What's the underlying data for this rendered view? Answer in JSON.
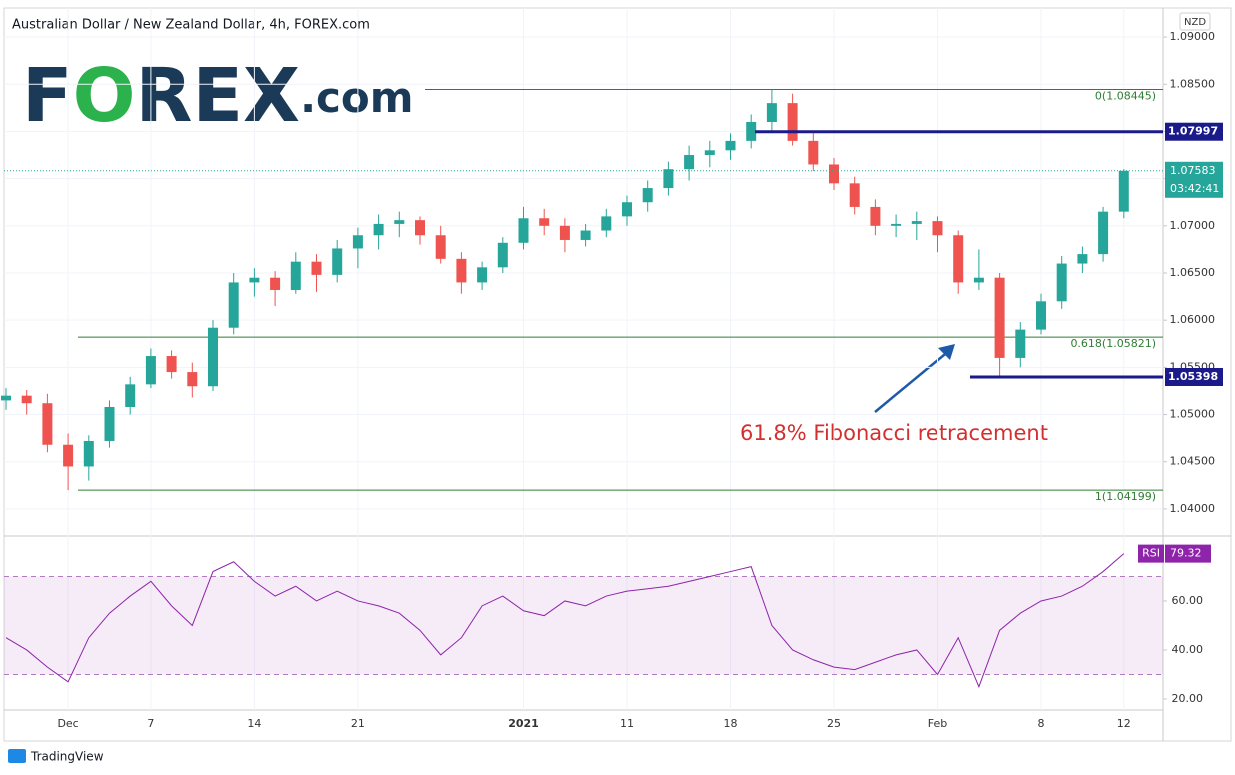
{
  "header": {
    "title": "Australian Dollar / New Zealand Dollar, 4h, FOREX.com",
    "logo": [
      "F",
      "O",
      "REX",
      ".com"
    ]
  },
  "chart_data": [
    {
      "type": "candlestick",
      "categories": [
        null,
        null,
        null,
        "Dec",
        null,
        null,
        null,
        "7",
        null,
        null,
        null,
        null,
        "14",
        null,
        null,
        null,
        null,
        "21",
        null,
        null,
        null,
        null,
        null,
        null,
        null,
        "2021",
        null,
        null,
        null,
        null,
        "11",
        null,
        null,
        null,
        null,
        "18",
        null,
        null,
        null,
        null,
        "25",
        null,
        null,
        null,
        null,
        "Feb",
        null,
        null,
        null,
        null,
        "8",
        null,
        null,
        null,
        "12"
      ],
      "open": [
        1.0515,
        1.052,
        1.0512,
        1.0468,
        1.0445,
        1.0472,
        1.0508,
        1.0532,
        1.0562,
        1.0545,
        1.053,
        1.0592,
        1.064,
        1.0645,
        1.0632,
        1.0662,
        1.0648,
        1.0676,
        1.069,
        1.0702,
        1.0706,
        1.069,
        1.0665,
        1.064,
        1.0656,
        1.0682,
        1.0708,
        1.07,
        1.0685,
        1.0695,
        1.071,
        1.0725,
        1.074,
        1.076,
        1.0775,
        1.078,
        1.079,
        1.081,
        1.083,
        1.079,
        1.0765,
        1.0745,
        1.072,
        1.07,
        1.0702,
        1.0705,
        1.069,
        1.064,
        1.0645,
        1.056,
        1.059,
        1.062,
        1.066,
        1.067,
        1.0715
      ],
      "high": [
        1.0528,
        1.0526,
        1.0522,
        1.048,
        1.0478,
        1.0515,
        1.054,
        1.057,
        1.0568,
        1.0555,
        1.06,
        1.065,
        1.0655,
        1.0652,
        1.0672,
        1.067,
        1.0685,
        1.0698,
        1.0712,
        1.0715,
        1.071,
        1.07,
        1.0672,
        1.0662,
        1.0688,
        1.072,
        1.0718,
        1.0708,
        1.0702,
        1.0718,
        1.0732,
        1.0748,
        1.0768,
        1.0785,
        1.079,
        1.0798,
        1.0818,
        1.08445,
        1.084,
        1.0798,
        1.0772,
        1.0752,
        1.0728,
        1.0712,
        1.0715,
        1.071,
        1.0695,
        1.0675,
        1.065,
        1.0598,
        1.0628,
        1.0668,
        1.0678,
        1.072,
        1.076
      ],
      "low": [
        1.0505,
        1.05,
        1.046,
        1.04199,
        1.043,
        1.0465,
        1.05,
        1.0528,
        1.0538,
        1.0518,
        1.0525,
        1.0585,
        1.0625,
        1.0615,
        1.0628,
        1.063,
        1.064,
        1.0655,
        1.0675,
        1.0688,
        1.068,
        1.066,
        1.0628,
        1.0632,
        1.065,
        1.0675,
        1.069,
        1.0672,
        1.0678,
        1.0688,
        1.07,
        1.0715,
        1.0732,
        1.0748,
        1.0762,
        1.077,
        1.0782,
        1.08,
        1.0785,
        1.0758,
        1.0738,
        1.0712,
        1.069,
        1.0688,
        1.0685,
        1.0672,
        1.0628,
        1.0632,
        1.05398,
        1.055,
        1.0585,
        1.0612,
        1.065,
        1.0662,
        1.0708
      ],
      "close": [
        1.052,
        1.0512,
        1.0468,
        1.0445,
        1.0472,
        1.0508,
        1.0532,
        1.0562,
        1.0545,
        1.053,
        1.0592,
        1.064,
        1.0645,
        1.0632,
        1.0662,
        1.0648,
        1.0676,
        1.069,
        1.0702,
        1.0706,
        1.069,
        1.0665,
        1.064,
        1.0656,
        1.0682,
        1.0708,
        1.07,
        1.0685,
        1.0695,
        1.071,
        1.0725,
        1.074,
        1.076,
        1.0775,
        1.078,
        1.079,
        1.081,
        1.083,
        1.079,
        1.0765,
        1.0745,
        1.072,
        1.07,
        1.0702,
        1.0705,
        1.069,
        1.064,
        1.0645,
        1.056,
        1.059,
        1.062,
        1.066,
        1.067,
        1.0715,
        1.07583
      ],
      "up_color": "#26a69a",
      "down_color": "#ef5350",
      "currency": "NZD",
      "ylim": [
        1.03713,
        1.09308
      ],
      "yticks": [
        {
          "value": 1.04,
          "label": "1.04000"
        },
        {
          "value": 1.045,
          "label": "1.04500"
        },
        {
          "value": 1.05,
          "label": "1.05000"
        },
        {
          "value": 1.055,
          "label": "1.05500"
        },
        {
          "value": 1.06,
          "label": "1.06000"
        },
        {
          "value": 1.065,
          "label": "1.06500"
        },
        {
          "value": 1.07,
          "label": "1.07000"
        },
        {
          "value": 1.075,
          "label": "1.07500"
        },
        {
          "value": 1.08,
          "label": "1.08000"
        },
        {
          "value": 1.085,
          "label": "1.08500"
        },
        {
          "value": 1.09,
          "label": "1.09000"
        }
      ],
      "fib": [
        {
          "value": 1.08445,
          "label": "0(1.08445)"
        },
        {
          "value": 1.05821,
          "label": "0.618(1.05821)"
        },
        {
          "value": 1.04199,
          "label": "1(1.04199)"
        }
      ],
      "fib_color": "#2e7d32",
      "levels": [
        {
          "value": 1.07997,
          "color": "#1a1a8a"
        },
        {
          "value": 1.05398,
          "color": "#1a1a8a"
        }
      ],
      "countdown": "03:42:41",
      "annotation": "61.8% Fibonacci retracement"
    },
    {
      "type": "line",
      "name": "RSI",
      "color": "#8e24aa",
      "values": [
        45,
        40,
        33,
        27,
        45,
        55,
        62,
        68,
        58,
        50,
        72,
        76,
        68,
        62,
        66,
        60,
        64,
        60,
        58,
        55,
        48,
        38,
        45,
        58,
        62,
        56,
        54,
        60,
        58,
        62,
        64,
        65,
        66,
        68,
        70,
        72,
        74,
        50,
        40,
        36,
        33,
        32,
        35,
        38,
        40,
        30,
        45,
        25,
        48,
        55,
        60,
        62,
        66,
        72,
        79.32
      ],
      "ylim": [
        15.5,
        86.1
      ],
      "yticks": [
        {
          "value": 20,
          "label": "20.00"
        },
        {
          "value": 40,
          "label": "40.00"
        },
        {
          "value": 60,
          "label": "60.00"
        }
      ],
      "band": [
        30,
        70
      ]
    }
  ],
  "footer": {
    "brand": "TradingView"
  }
}
